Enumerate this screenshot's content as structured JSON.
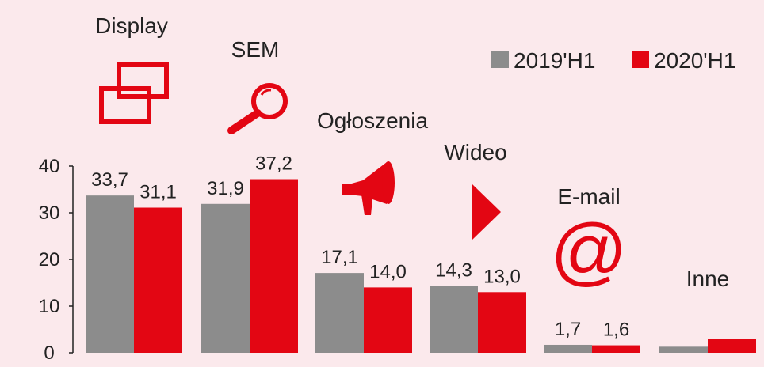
{
  "chart_data": {
    "type": "bar",
    "categories": [
      "Display",
      "SEM",
      "Ogłoszenia",
      "Wideo",
      "E-mail",
      "Inne"
    ],
    "category_icons": [
      "display-windows-icon",
      "magnifier-icon",
      "megaphone-icon",
      "play-triangle-icon",
      "at-sign-icon",
      ""
    ],
    "series": [
      {
        "name": "2019'H1",
        "color": "#8c8c8c",
        "values": [
          33.7,
          31.9,
          17.1,
          14.3,
          1.7,
          1.3
        ],
        "labels": [
          "33,7",
          "31,9",
          "17,1",
          "14,3",
          "1,7",
          ""
        ]
      },
      {
        "name": "2020'H1",
        "color": "#e30613",
        "values": [
          31.1,
          37.2,
          14.0,
          13.0,
          1.6,
          3.0
        ],
        "labels": [
          "31,1",
          "37,2",
          "14,0",
          "13,0",
          "1,6",
          ""
        ]
      }
    ],
    "ylim": [
      0,
      40
    ],
    "yticks": [
      0,
      10,
      20,
      30,
      40
    ],
    "grid": false,
    "legend_position": "top-right",
    "title": "",
    "xlabel": "",
    "ylabel": ""
  }
}
